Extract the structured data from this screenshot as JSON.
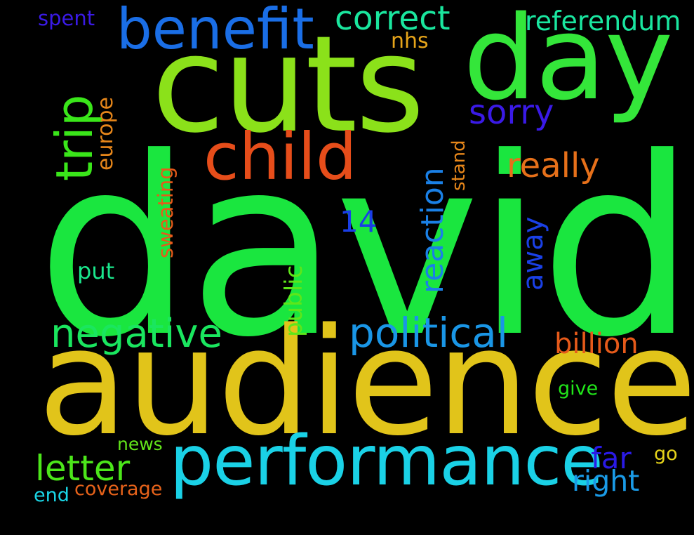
{
  "wordcloud": {
    "background": "#000000",
    "words": {
      "david": {
        "text": "david",
        "color": "#1ae63f"
      },
      "audience": {
        "text": "audience",
        "color": "#e1c41a"
      },
      "cuts": {
        "text": "cuts",
        "color": "#8be11a"
      },
      "day": {
        "text": "day",
        "color": "#34e63a"
      },
      "performance": {
        "text": "performance",
        "color": "#1ad1e6"
      },
      "child": {
        "text": "child",
        "color": "#e64d1a"
      },
      "benefit": {
        "text": "benefit",
        "color": "#1a6ee6"
      },
      "trip": {
        "text": "trip",
        "color": "#3ae61a"
      },
      "political": {
        "text": "political",
        "color": "#1a96e6"
      },
      "negative": {
        "text": "negative",
        "color": "#1ae65f"
      },
      "letter": {
        "text": "letter",
        "color": "#4ce61a"
      },
      "correct": {
        "text": "correct",
        "color": "#1ae69e"
      },
      "sorry": {
        "text": "sorry",
        "color": "#3a1ae6"
      },
      "really": {
        "text": "really",
        "color": "#e6701a"
      },
      "reaction": {
        "text": "reaction",
        "color": "#1a80e6"
      },
      "billion": {
        "text": "billion",
        "color": "#e65a1a"
      },
      "right": {
        "text": "right",
        "color": "#1a9ae6"
      },
      "far": {
        "text": "far",
        "color": "#2a1ae6"
      },
      "referendum": {
        "text": "referendum",
        "color": "#1ae6a0"
      },
      "away": {
        "text": "away",
        "color": "#1a40e6"
      },
      "public": {
        "text": "public",
        "color": "#5ee61a"
      },
      "fourteen": {
        "text": "14",
        "color": "#1a3ee6"
      },
      "europe": {
        "text": "europe",
        "color": "#e6861a"
      },
      "sweating": {
        "text": "sweating",
        "color": "#e65a1a"
      },
      "put": {
        "text": "put",
        "color": "#1ae68c"
      },
      "spent": {
        "text": "spent",
        "color": "#3a1ae6"
      },
      "nhs": {
        "text": "nhs",
        "color": "#e6a41a"
      },
      "stand": {
        "text": "stand",
        "color": "#e6861a"
      },
      "give": {
        "text": "give",
        "color": "#21e61a"
      },
      "news": {
        "text": "news",
        "color": "#62e61a"
      },
      "go": {
        "text": "go",
        "color": "#e6d41a"
      },
      "coverage": {
        "text": "coverage",
        "color": "#e6621a"
      },
      "end": {
        "text": "end",
        "color": "#1ad6e6"
      }
    }
  }
}
